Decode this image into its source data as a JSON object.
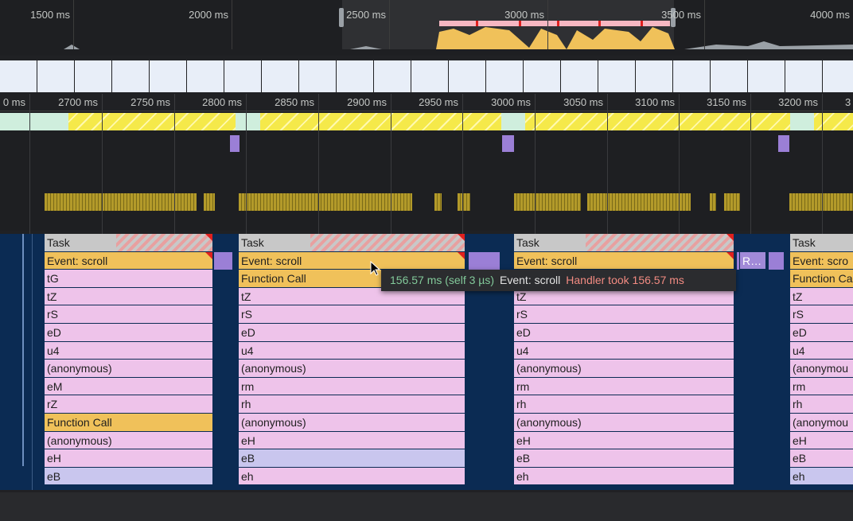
{
  "overview": {
    "ticks": [
      "1500 ms",
      "2000 ms",
      "2500 ms",
      "3000 ms",
      "3500 ms",
      "4000 ms"
    ]
  },
  "ruler": {
    "ticks": [
      "0 ms",
      "2700 ms",
      "2750 ms",
      "2800 ms",
      "2850 ms",
      "2900 ms",
      "2950 ms",
      "3000 ms",
      "3050 ms",
      "3100 ms",
      "3150 ms",
      "3200 ms",
      "3"
    ]
  },
  "flame": {
    "columns": [
      {
        "rows": [
          "Task",
          "Event: scroll",
          "tG",
          "tZ",
          "rS",
          "eD",
          "u4",
          "(anonymous)",
          "eM",
          "rZ",
          "Function Call",
          "(anonymous)",
          "eH",
          "eB"
        ]
      },
      {
        "rows": [
          "Task",
          "Event: scroll",
          "Function Call",
          "tZ",
          "rS",
          "eD",
          "u4",
          "(anonymous)",
          "rm",
          "rh",
          "(anonymous)",
          "eH",
          "eB",
          "eh"
        ]
      },
      {
        "rows": [
          "Task",
          "Event: scroll",
          "tZ",
          "rS",
          "eD",
          "u4",
          "(anonymous)",
          "rm",
          "rh",
          "(anonymous)",
          "eH",
          "eB",
          "eh"
        ]
      },
      {
        "rows": [
          "Task",
          "Event: scro",
          "Function Ca",
          "tZ",
          "rS",
          "eD",
          "u4",
          "(anonymou",
          "rm",
          "rh",
          "(anonymou",
          "eH",
          "eB",
          "eh"
        ]
      }
    ],
    "extra": "R…"
  },
  "tooltip": {
    "duration": "156.57 ms (self 3 µs)",
    "event": "Event: scroll",
    "warning": "Handler took 156.57 ms"
  }
}
